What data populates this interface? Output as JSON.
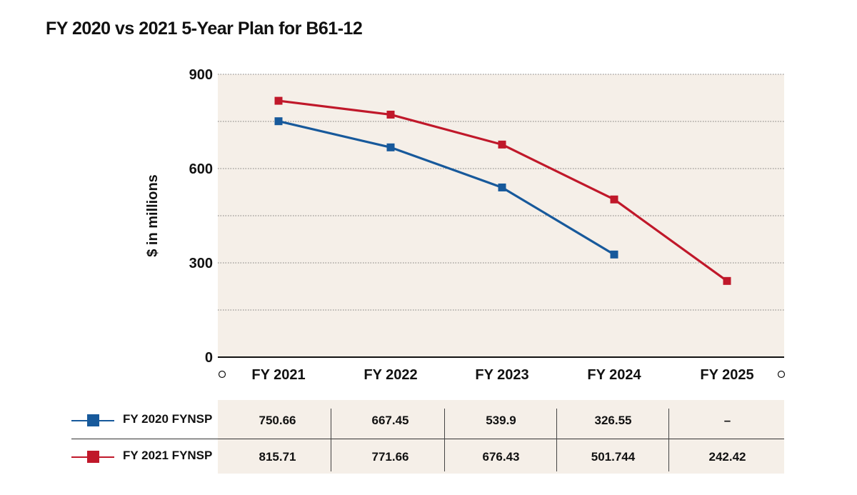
{
  "chart_data": {
    "type": "line",
    "title": "FY 2020 vs 2021 5-Year Plan for B61-12",
    "ylabel": "$ in millions",
    "xlabel": "",
    "categories": [
      "FY 2021",
      "FY 2022",
      "FY 2023",
      "FY 2024",
      "FY 2025"
    ],
    "ylim": [
      0,
      900
    ],
    "yticks": [
      "0",
      "300",
      "600",
      "900"
    ],
    "grid": true,
    "series": [
      {
        "name": "FY 2020 FYNSP",
        "color": "#17599b",
        "values": [
          750.66,
          667.45,
          539.9,
          326.55,
          null
        ],
        "labels": [
          "750.66",
          "667.45",
          "539.9",
          "326.55",
          "–"
        ]
      },
      {
        "name": "FY 2021 FYNSP",
        "color": "#c0182a",
        "values": [
          815.71,
          771.66,
          676.43,
          501.744,
          242.42
        ],
        "labels": [
          "815.71",
          "771.66",
          "676.43",
          "501.744",
          "242.42"
        ]
      }
    ]
  }
}
